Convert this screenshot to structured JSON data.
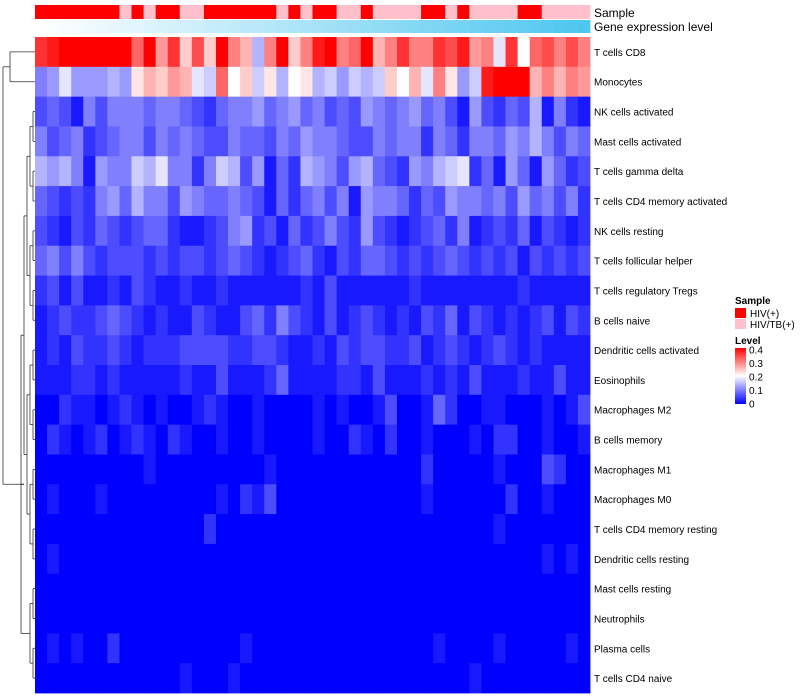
{
  "chart_data": {
    "type": "heatmap",
    "annotation_tracks": [
      "Sample",
      "Gene expression level"
    ],
    "rows": [
      "T cells CD8",
      "Monocytes",
      "NK cells activated",
      "Mast cells activated",
      "T cells gamma delta",
      "T cells CD4 memory activated",
      "NK cells resting",
      "T cells follicular helper",
      "T cells regulatory  Tregs",
      "B cells naive",
      "Dendritic cells activated",
      "Eosinophils",
      "Macrophages M2",
      "B cells memory",
      "Macrophages M1",
      "Macrophages M0",
      "T cells CD4 memory resting",
      "Dendritic cells resting",
      "Mast cells resting",
      "Neutrophils",
      "Plasma cells",
      "T cells CD4 naive"
    ],
    "n_samples": 46,
    "sample_groups": [
      "HIV(+)",
      "HIV(+)",
      "HIV(+)",
      "HIV(+)",
      "HIV(+)",
      "HIV(+)",
      "HIV(+)",
      "HIV/TB(+)",
      "HIV(+)",
      "HIV/TB(+)",
      "HIV(+)",
      "HIV(+)",
      "HIV/TB(+)",
      "HIV/TB(+)",
      "HIV(+)",
      "HIV(+)",
      "HIV(+)",
      "HIV(+)",
      "HIV(+)",
      "HIV(+)",
      "HIV/TB(+)",
      "HIV(+)",
      "HIV/TB(+)",
      "HIV(+)",
      "HIV(+)",
      "HIV/TB(+)",
      "HIV/TB(+)",
      "HIV(+)",
      "HIV/TB(+)",
      "HIV/TB(+)",
      "HIV/TB(+)",
      "HIV/TB(+)",
      "HIV(+)",
      "HIV(+)",
      "HIV/TB(+)",
      "HIV(+)",
      "HIV/TB(+)",
      "HIV/TB(+)",
      "HIV/TB(+)",
      "HIV/TB(+)",
      "HIV(+)",
      "HIV(+)",
      "HIV/TB(+)",
      "HIV/TB(+)",
      "HIV/TB(+)",
      "HIV/TB(+)"
    ],
    "expression_level": "increasing left to right (white to light blue)",
    "values": [
      [
        0.36,
        0.38,
        0.4,
        0.4,
        0.4,
        0.4,
        0.4,
        0.4,
        0.32,
        0.4,
        0.28,
        0.36,
        0.24,
        0.34,
        0.24,
        0.4,
        0.3,
        0.26,
        0.14,
        0.3,
        0.4,
        0.24,
        0.3,
        0.38,
        0.4,
        0.3,
        0.32,
        0.4,
        0.26,
        0.3,
        0.36,
        0.3,
        0.3,
        0.36,
        0.34,
        0.38,
        0.28,
        0.3,
        0.18,
        0.36,
        0.2,
        0.32,
        0.34,
        0.3,
        0.34,
        0.3
      ],
      [
        0.1,
        0.12,
        0.18,
        0.12,
        0.12,
        0.12,
        0.14,
        0.12,
        0.22,
        0.26,
        0.24,
        0.28,
        0.26,
        0.18,
        0.16,
        0.32,
        0.2,
        0.24,
        0.16,
        0.22,
        0.14,
        0.2,
        0.22,
        0.14,
        0.16,
        0.12,
        0.16,
        0.14,
        0.16,
        0.24,
        0.2,
        0.26,
        0.18,
        0.3,
        0.22,
        0.12,
        0.16,
        0.38,
        0.4,
        0.4,
        0.4,
        0.26,
        0.3,
        0.26,
        0.3,
        0.28
      ],
      [
        0.06,
        0.08,
        0.06,
        0.02,
        0.1,
        0.06,
        0.1,
        0.1,
        0.1,
        0.08,
        0.1,
        0.1,
        0.08,
        0.06,
        0.04,
        0.08,
        0.1,
        0.1,
        0.12,
        0.08,
        0.1,
        0.12,
        0.08,
        0.1,
        0.06,
        0.08,
        0.06,
        0.12,
        0.1,
        0.08,
        0.1,
        0.12,
        0.08,
        0.1,
        0.06,
        0.02,
        0.12,
        0.06,
        0.04,
        0.08,
        0.06,
        0.14,
        0.02,
        0.1,
        0.04,
        0.02
      ],
      [
        0.1,
        0.06,
        0.08,
        0.1,
        0.04,
        0.06,
        0.08,
        0.1,
        0.1,
        0.06,
        0.1,
        0.08,
        0.1,
        0.08,
        0.06,
        0.06,
        0.1,
        0.08,
        0.08,
        0.06,
        0.1,
        0.08,
        0.12,
        0.1,
        0.1,
        0.08,
        0.06,
        0.06,
        0.1,
        0.08,
        0.1,
        0.1,
        0.04,
        0.1,
        0.08,
        0.04,
        0.1,
        0.1,
        0.08,
        0.12,
        0.1,
        0.14,
        0.1,
        0.06,
        0.1,
        0.08
      ],
      [
        0.14,
        0.12,
        0.14,
        0.1,
        0.02,
        0.12,
        0.1,
        0.1,
        0.16,
        0.14,
        0.18,
        0.1,
        0.1,
        0.04,
        0.1,
        0.16,
        0.14,
        0.06,
        0.12,
        0.02,
        0.08,
        0.04,
        0.14,
        0.12,
        0.1,
        0.06,
        0.12,
        0.14,
        0.08,
        0.06,
        0.04,
        0.12,
        0.1,
        0.14,
        0.16,
        0.18,
        0.04,
        0.08,
        0.02,
        0.12,
        0.08,
        0.02,
        0.12,
        0.08,
        0.04,
        0.06
      ],
      [
        0.08,
        0.06,
        0.04,
        0.06,
        0.04,
        0.1,
        0.12,
        0.08,
        0.14,
        0.1,
        0.1,
        0.06,
        0.12,
        0.1,
        0.08,
        0.08,
        0.1,
        0.08,
        0.06,
        0.02,
        0.08,
        0.04,
        0.08,
        0.1,
        0.06,
        0.1,
        0.02,
        0.12,
        0.1,
        0.1,
        0.08,
        0.04,
        0.08,
        0.06,
        0.12,
        0.1,
        0.1,
        0.08,
        0.1,
        0.06,
        0.12,
        0.08,
        0.1,
        0.06,
        0.1,
        0.04
      ],
      [
        0.06,
        0.04,
        0.02,
        0.06,
        0.04,
        0.08,
        0.06,
        0.04,
        0.06,
        0.08,
        0.08,
        0.04,
        0.02,
        0.02,
        0.04,
        0.06,
        0.1,
        0.12,
        0.04,
        0.06,
        0.02,
        0.08,
        0.04,
        0.06,
        0.1,
        0.06,
        0.04,
        0.12,
        0.06,
        0.04,
        0.02,
        0.04,
        0.06,
        0.08,
        0.04,
        0.1,
        0.02,
        0.04,
        0.06,
        0.04,
        0.08,
        0.02,
        0.06,
        0.04,
        0.02,
        0.04
      ],
      [
        0.08,
        0.1,
        0.06,
        0.1,
        0.06,
        0.04,
        0.06,
        0.06,
        0.06,
        0.04,
        0.06,
        0.04,
        0.06,
        0.06,
        0.04,
        0.06,
        0.08,
        0.06,
        0.04,
        0.02,
        0.04,
        0.06,
        0.08,
        0.04,
        0.02,
        0.06,
        0.04,
        0.08,
        0.08,
        0.06,
        0.04,
        0.06,
        0.04,
        0.06,
        0.08,
        0.06,
        0.04,
        0.06,
        0.04,
        0.06,
        0.02,
        0.06,
        0.04,
        0.06,
        0.04,
        0.06
      ],
      [
        0.04,
        0.06,
        0.02,
        0.06,
        0.02,
        0.02,
        0.04,
        0.02,
        0.06,
        0.04,
        0.02,
        0.02,
        0.04,
        0.02,
        0.02,
        0.04,
        0.02,
        0.02,
        0.02,
        0.02,
        0.02,
        0.02,
        0.04,
        0.02,
        0.06,
        0.02,
        0.02,
        0.02,
        0.02,
        0.02,
        0.02,
        0.04,
        0.02,
        0.02,
        0.02,
        0.02,
        0.02,
        0.02,
        0.02,
        0.02,
        0.04,
        0.02,
        0.02,
        0.02,
        0.02,
        0.02
      ],
      [
        0.02,
        0.04,
        0.06,
        0.04,
        0.04,
        0.06,
        0.08,
        0.06,
        0.04,
        0.02,
        0.04,
        0.02,
        0.02,
        0.06,
        0.04,
        0.02,
        0.02,
        0.06,
        0.08,
        0.04,
        0.1,
        0.06,
        0.04,
        0.02,
        0.06,
        0.02,
        0.04,
        0.06,
        0.04,
        0.02,
        0.04,
        0.02,
        0.06,
        0.04,
        0.08,
        0.02,
        0.06,
        0.04,
        0.02,
        0.04,
        0.02,
        0.04,
        0.06,
        0.02,
        0.06,
        0.04
      ],
      [
        0.02,
        0.04,
        0.02,
        0.06,
        0.04,
        0.04,
        0.06,
        0.04,
        0.02,
        0.04,
        0.04,
        0.04,
        0.06,
        0.06,
        0.06,
        0.06,
        0.04,
        0.04,
        0.06,
        0.06,
        0.04,
        0.02,
        0.02,
        0.04,
        0.02,
        0.06,
        0.04,
        0.06,
        0.06,
        0.04,
        0.04,
        0.06,
        0.02,
        0.04,
        0.06,
        0.04,
        0.02,
        0.04,
        0.06,
        0.04,
        0.02,
        0.04,
        0.02,
        0.02,
        0.02,
        0.02
      ],
      [
        0.02,
        0.02,
        0.02,
        0.04,
        0.04,
        0.02,
        0.04,
        0.02,
        0.02,
        0.02,
        0.02,
        0.02,
        0.04,
        0.02,
        0.02,
        0.06,
        0.02,
        0.02,
        0.02,
        0.04,
        0.08,
        0.02,
        0.02,
        0.02,
        0.02,
        0.04,
        0.04,
        0.02,
        0.06,
        0.02,
        0.02,
        0.02,
        0.04,
        0.02,
        0.04,
        0.02,
        0.06,
        0.02,
        0.02,
        0.02,
        0.04,
        0.02,
        0.02,
        0.06,
        0.02,
        0.02
      ],
      [
        0.0,
        0.0,
        0.04,
        0.02,
        0.02,
        0.0,
        0.02,
        0.04,
        0.02,
        0.0,
        0.02,
        0.0,
        0.0,
        0.02,
        0.04,
        0.02,
        0.0,
        0.0,
        0.02,
        0.0,
        0.0,
        0.0,
        0.0,
        0.02,
        0.0,
        0.02,
        0.0,
        0.0,
        0.02,
        0.06,
        0.0,
        0.0,
        0.02,
        0.08,
        0.04,
        0.0,
        0.0,
        0.02,
        0.02,
        0.0,
        0.0,
        0.0,
        0.02,
        0.0,
        0.02,
        0.06
      ],
      [
        0.0,
        0.04,
        0.02,
        0.0,
        0.02,
        0.04,
        0.0,
        0.02,
        0.04,
        0.02,
        0.0,
        0.04,
        0.02,
        0.0,
        0.0,
        0.02,
        0.0,
        0.0,
        0.02,
        0.0,
        0.0,
        0.0,
        0.0,
        0.02,
        0.0,
        0.0,
        0.04,
        0.02,
        0.0,
        0.04,
        0.0,
        0.0,
        0.02,
        0.0,
        0.0,
        0.0,
        0.02,
        0.0,
        0.04,
        0.04,
        0.0,
        0.0,
        0.02,
        0.0,
        0.0,
        0.02
      ],
      [
        0.0,
        0.0,
        0.0,
        0.0,
        0.0,
        0.0,
        0.0,
        0.0,
        0.0,
        0.02,
        0.0,
        0.0,
        0.0,
        0.0,
        0.0,
        0.0,
        0.0,
        0.0,
        0.0,
        0.02,
        0.0,
        0.0,
        0.0,
        0.0,
        0.0,
        0.0,
        0.0,
        0.0,
        0.0,
        0.0,
        0.0,
        0.0,
        0.04,
        0.0,
        0.0,
        0.0,
        0.0,
        0.0,
        0.02,
        0.0,
        0.0,
        0.0,
        0.06,
        0.04,
        0.0,
        0.0
      ],
      [
        0.0,
        0.02,
        0.0,
        0.0,
        0.0,
        0.02,
        0.0,
        0.0,
        0.0,
        0.0,
        0.0,
        0.0,
        0.0,
        0.0,
        0.0,
        0.02,
        0.0,
        0.04,
        0.02,
        0.06,
        0.0,
        0.0,
        0.0,
        0.0,
        0.0,
        0.0,
        0.0,
        0.0,
        0.0,
        0.0,
        0.0,
        0.0,
        0.02,
        0.0,
        0.0,
        0.0,
        0.0,
        0.0,
        0.0,
        0.04,
        0.0,
        0.0,
        0.02,
        0.0,
        0.0,
        0.0
      ],
      [
        0.0,
        0.0,
        0.0,
        0.0,
        0.0,
        0.0,
        0.0,
        0.0,
        0.0,
        0.0,
        0.0,
        0.0,
        0.0,
        0.0,
        0.04,
        0.0,
        0.0,
        0.0,
        0.0,
        0.0,
        0.0,
        0.0,
        0.0,
        0.0,
        0.0,
        0.0,
        0.0,
        0.0,
        0.0,
        0.0,
        0.0,
        0.0,
        0.0,
        0.0,
        0.0,
        0.0,
        0.0,
        0.0,
        0.02,
        0.0,
        0.0,
        0.0,
        0.0,
        0.0,
        0.0,
        0.0
      ],
      [
        0.0,
        0.02,
        0.0,
        0.0,
        0.0,
        0.0,
        0.0,
        0.0,
        0.0,
        0.0,
        0.0,
        0.0,
        0.0,
        0.0,
        0.0,
        0.0,
        0.0,
        0.0,
        0.0,
        0.0,
        0.0,
        0.0,
        0.0,
        0.0,
        0.0,
        0.0,
        0.0,
        0.0,
        0.0,
        0.0,
        0.0,
        0.0,
        0.0,
        0.0,
        0.0,
        0.0,
        0.0,
        0.0,
        0.0,
        0.0,
        0.0,
        0.0,
        0.02,
        0.0,
        0.02,
        0.0
      ],
      [
        0.0,
        0.0,
        0.0,
        0.0,
        0.0,
        0.0,
        0.0,
        0.0,
        0.0,
        0.0,
        0.0,
        0.0,
        0.0,
        0.0,
        0.0,
        0.0,
        0.0,
        0.0,
        0.0,
        0.0,
        0.0,
        0.0,
        0.0,
        0.0,
        0.0,
        0.0,
        0.0,
        0.0,
        0.0,
        0.0,
        0.0,
        0.0,
        0.0,
        0.0,
        0.0,
        0.0,
        0.0,
        0.0,
        0.0,
        0.0,
        0.0,
        0.0,
        0.0,
        0.0,
        0.0,
        0.0
      ],
      [
        0.0,
        0.0,
        0.0,
        0.0,
        0.0,
        0.0,
        0.0,
        0.0,
        0.0,
        0.0,
        0.0,
        0.0,
        0.0,
        0.0,
        0.0,
        0.0,
        0.0,
        0.0,
        0.0,
        0.0,
        0.0,
        0.0,
        0.0,
        0.0,
        0.0,
        0.0,
        0.0,
        0.0,
        0.0,
        0.0,
        0.0,
        0.0,
        0.0,
        0.0,
        0.0,
        0.0,
        0.0,
        0.0,
        0.0,
        0.0,
        0.0,
        0.0,
        0.0,
        0.0,
        0.0,
        0.0
      ],
      [
        0.0,
        0.02,
        0.0,
        0.02,
        0.0,
        0.0,
        0.04,
        0.0,
        0.0,
        0.0,
        0.0,
        0.0,
        0.0,
        0.0,
        0.0,
        0.0,
        0.0,
        0.02,
        0.0,
        0.0,
        0.0,
        0.0,
        0.0,
        0.0,
        0.0,
        0.0,
        0.0,
        0.0,
        0.0,
        0.0,
        0.0,
        0.0,
        0.0,
        0.02,
        0.0,
        0.0,
        0.0,
        0.0,
        0.02,
        0.0,
        0.0,
        0.0,
        0.0,
        0.0,
        0.02,
        0.0
      ],
      [
        0.0,
        0.0,
        0.0,
        0.0,
        0.0,
        0.0,
        0.0,
        0.0,
        0.0,
        0.0,
        0.0,
        0.0,
        0.02,
        0.0,
        0.0,
        0.0,
        0.02,
        0.0,
        0.0,
        0.0,
        0.0,
        0.0,
        0.0,
        0.0,
        0.0,
        0.0,
        0.0,
        0.0,
        0.0,
        0.0,
        0.0,
        0.0,
        0.0,
        0.0,
        0.0,
        0.0,
        0.02,
        0.0,
        0.0,
        0.0,
        0.0,
        0.0,
        0.0,
        0.0,
        0.0,
        0.0
      ]
    ],
    "legend_sample": {
      "title": "Sample",
      "entries": [
        {
          "label": "HIV(+)",
          "color": "#ff0000"
        },
        {
          "label": "HIV/TB(+)",
          "color": "#ffc0cb"
        }
      ]
    },
    "legend_level": {
      "title": "Level",
      "ticks": [
        "0.4",
        "0.3",
        "0.2",
        "0.1",
        "0"
      ],
      "range": [
        0,
        0.4
      ]
    },
    "colors": {
      "low": "#0000ff",
      "mid": "#ffffff",
      "high": "#ff0000",
      "expression_start": "#ffffff",
      "expression_end": "#4ec6ef"
    }
  }
}
